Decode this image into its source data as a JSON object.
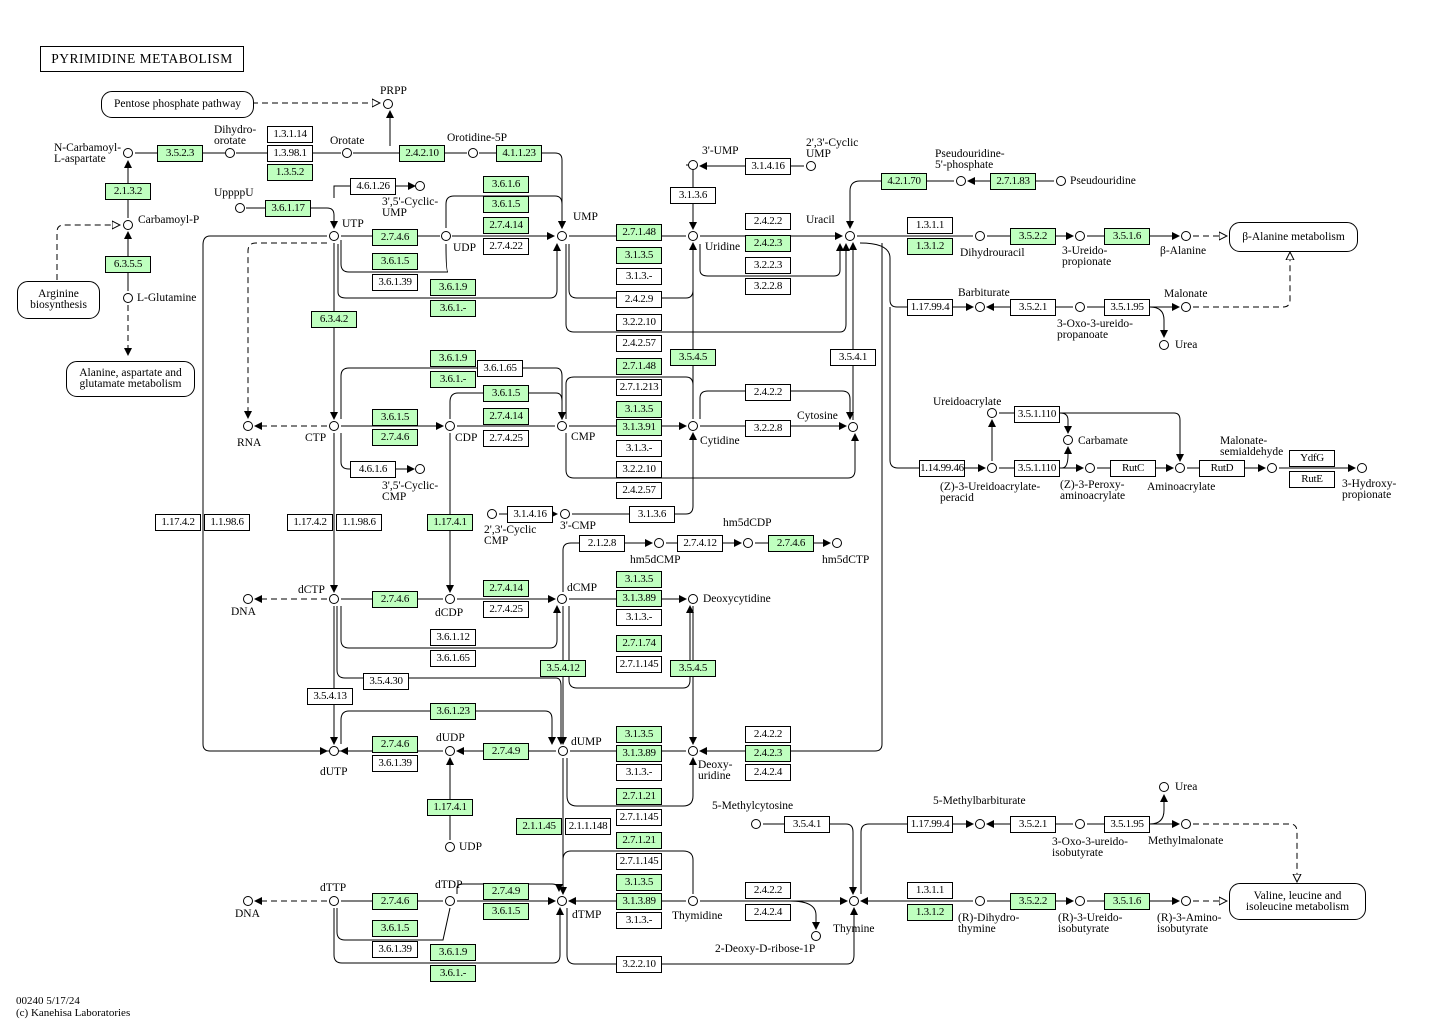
{
  "title": "PYRIMIDINE METABOLISM",
  "footer": {
    "line1": "00240 5/17/24",
    "line2": "(c) Kanehisa Laboratories"
  },
  "colors": {
    "highlighted_enzyme": "#bfffbf",
    "enzyme": "#ffffff"
  },
  "maps": [
    {
      "label": "Pentose phosphate pathway"
    },
    {
      "label": "Arginine\nbiosynthesis"
    },
    {
      "label": "Alanine, aspartate and\nglutamate metabolism"
    },
    {
      "label": "β-Alanine metabolism"
    },
    {
      "label": "Valine, leucine and\nisoleucine metabolism"
    }
  ],
  "enzymes": [
    {
      "label": "3.5.2.3",
      "hl": true
    },
    {
      "label": "1.3.1.14",
      "hl": false
    },
    {
      "label": "1.3.98.1",
      "hl": false
    },
    {
      "label": "1.3.5.2",
      "hl": true
    },
    {
      "label": "2.1.3.2",
      "hl": true
    },
    {
      "label": "6.3.5.5",
      "hl": true
    },
    {
      "label": "3.6.1.17",
      "hl": true
    },
    {
      "label": "2.4.2.10",
      "hl": true
    },
    {
      "label": "4.1.1.23",
      "hl": true
    },
    {
      "label": "4.6.1.26",
      "hl": false
    },
    {
      "label": "3.6.1.6",
      "hl": true
    },
    {
      "label": "3.6.1.5",
      "hl": true
    },
    {
      "label": "2.7.4.14",
      "hl": true
    },
    {
      "label": "2.7.4.22",
      "hl": false
    },
    {
      "label": "2.7.4.6",
      "hl": true
    },
    {
      "label": "3.6.1.5",
      "hl": true
    },
    {
      "label": "3.6.1.39",
      "hl": false
    },
    {
      "label": "3.6.1.9",
      "hl": true
    },
    {
      "label": "3.6.1.-",
      "hl": true
    },
    {
      "label": "6.3.4.2",
      "hl": true
    },
    {
      "label": "2.7.1.48",
      "hl": true
    },
    {
      "label": "3.1.3.5",
      "hl": true
    },
    {
      "label": "3.1.3.-",
      "hl": false
    },
    {
      "label": "2.4.2.9",
      "hl": false
    },
    {
      "label": "3.2.2.10",
      "hl": false
    },
    {
      "label": "2.4.2.57",
      "hl": false
    },
    {
      "label": "3.1.3.6",
      "hl": false
    },
    {
      "label": "3.1.4.16",
      "hl": false
    },
    {
      "label": "2.4.2.2",
      "hl": false
    },
    {
      "label": "2.4.2.3",
      "hl": true
    },
    {
      "label": "3.2.2.3",
      "hl": false
    },
    {
      "label": "3.2.2.8",
      "hl": false
    },
    {
      "label": "3.5.4.5",
      "hl": true
    },
    {
      "label": "3.5.4.1",
      "hl": false
    },
    {
      "label": "4.2.1.70",
      "hl": true
    },
    {
      "label": "2.7.1.83",
      "hl": true
    },
    {
      "label": "1.3.1.1",
      "hl": false
    },
    {
      "label": "1.3.1.2",
      "hl": true
    },
    {
      "label": "3.5.2.2",
      "hl": true
    },
    {
      "label": "3.5.1.6",
      "hl": true
    },
    {
      "label": "1.17.99.4",
      "hl": false
    },
    {
      "label": "3.5.2.1",
      "hl": false
    },
    {
      "label": "3.5.1.95",
      "hl": false
    },
    {
      "label": "3.6.1.9",
      "hl": true
    },
    {
      "label": "3.6.1.65",
      "hl": false
    },
    {
      "label": "3.6.1.-",
      "hl": true
    },
    {
      "label": "3.6.1.5",
      "hl": true
    },
    {
      "label": "2.7.4.14",
      "hl": true
    },
    {
      "label": "2.7.4.25",
      "hl": false
    },
    {
      "label": "3.6.1.5",
      "hl": true
    },
    {
      "label": "2.7.4.6",
      "hl": true
    },
    {
      "label": "4.6.1.6",
      "hl": false
    },
    {
      "label": "2.7.1.48",
      "hl": true
    },
    {
      "label": "2.7.1.213",
      "hl": false
    },
    {
      "label": "3.1.3.5",
      "hl": true
    },
    {
      "label": "3.1.3.91",
      "hl": true
    },
    {
      "label": "3.1.3.-",
      "hl": false
    },
    {
      "label": "3.2.2.10",
      "hl": false
    },
    {
      "label": "2.4.2.57",
      "hl": false
    },
    {
      "label": "2.4.2.2",
      "hl": false
    },
    {
      "label": "3.2.2.8",
      "hl": false
    },
    {
      "label": "3.1.4.16",
      "hl": false
    },
    {
      "label": "3.1.3.6",
      "hl": false
    },
    {
      "label": "1.17.4.2",
      "hl": false
    },
    {
      "label": "1.1.98.6",
      "hl": false
    },
    {
      "label": "1.17.4.2",
      "hl": false
    },
    {
      "label": "1.1.98.6",
      "hl": false
    },
    {
      "label": "1.17.4.1",
      "hl": true
    },
    {
      "label": "2.1.2.8",
      "hl": false
    },
    {
      "label": "2.7.4.12",
      "hl": false
    },
    {
      "label": "2.7.4.6",
      "hl": true
    },
    {
      "label": "2.7.4.6",
      "hl": true
    },
    {
      "label": "2.7.4.14",
      "hl": true
    },
    {
      "label": "2.7.4.25",
      "hl": false
    },
    {
      "label": "3.6.1.12",
      "hl": false
    },
    {
      "label": "3.6.1.65",
      "hl": false
    },
    {
      "label": "3.1.3.5",
      "hl": true
    },
    {
      "label": "3.1.3.89",
      "hl": true
    },
    {
      "label": "3.1.3.-",
      "hl": false
    },
    {
      "label": "2.7.1.74",
      "hl": true
    },
    {
      "label": "2.7.1.145",
      "hl": false
    },
    {
      "label": "3.5.4.12",
      "hl": true
    },
    {
      "label": "3.5.4.5",
      "hl": true
    },
    {
      "label": "3.5.4.30",
      "hl": false
    },
    {
      "label": "3.5.4.13",
      "hl": false
    },
    {
      "label": "3.6.1.23",
      "hl": true
    },
    {
      "label": "2.7.4.6",
      "hl": true
    },
    {
      "label": "3.6.1.39",
      "hl": false
    },
    {
      "label": "2.7.4.9",
      "hl": true
    },
    {
      "label": "3.1.3.5",
      "hl": true
    },
    {
      "label": "3.1.3.89",
      "hl": true
    },
    {
      "label": "3.1.3.-",
      "hl": false
    },
    {
      "label": "2.7.1.21",
      "hl": true
    },
    {
      "label": "2.7.1.145",
      "hl": false
    },
    {
      "label": "2.4.2.2",
      "hl": false
    },
    {
      "label": "2.4.2.3",
      "hl": true
    },
    {
      "label": "2.4.2.4",
      "hl": false
    },
    {
      "label": "1.17.4.1",
      "hl": true
    },
    {
      "label": "2.1.1.45",
      "hl": true
    },
    {
      "label": "2.1.1.148",
      "hl": false
    },
    {
      "label": "2.7.1.21",
      "hl": true
    },
    {
      "label": "2.7.1.145",
      "hl": false
    },
    {
      "label": "3.1.3.5",
      "hl": true
    },
    {
      "label": "3.1.3.89",
      "hl": true
    },
    {
      "label": "3.1.3.-",
      "hl": false
    },
    {
      "label": "3.2.2.10",
      "hl": false
    },
    {
      "label": "2.7.4.9",
      "hl": true
    },
    {
      "label": "3.6.1.5",
      "hl": true
    },
    {
      "label": "2.7.4.6",
      "hl": true
    },
    {
      "label": "3.6.1.5",
      "hl": true
    },
    {
      "label": "3.6.1.39",
      "hl": false
    },
    {
      "label": "3.6.1.9",
      "hl": true
    },
    {
      "label": "3.6.1.-",
      "hl": true
    },
    {
      "label": "2.4.2.2",
      "hl": false
    },
    {
      "label": "2.4.2.4",
      "hl": false
    },
    {
      "label": "3.5.4.1",
      "hl": false
    },
    {
      "label": "1.17.99.4",
      "hl": false
    },
    {
      "label": "3.5.2.1",
      "hl": false
    },
    {
      "label": "3.5.1.95",
      "hl": false
    },
    {
      "label": "1.3.1.1",
      "hl": false
    },
    {
      "label": "1.3.1.2",
      "hl": true
    },
    {
      "label": "3.5.2.2",
      "hl": true
    },
    {
      "label": "3.5.1.6",
      "hl": true
    },
    {
      "label": "3.5.1.110",
      "hl": false
    },
    {
      "label": "1.14.99.46",
      "hl": false
    },
    {
      "label": "3.5.1.110",
      "hl": false
    },
    {
      "label": "RutC",
      "hl": false
    },
    {
      "label": "RutD",
      "hl": false
    },
    {
      "label": "YdfG",
      "hl": false
    },
    {
      "label": "RutE",
      "hl": false
    }
  ],
  "compounds": [
    {
      "label": "PRPP"
    },
    {
      "label": "Orotate"
    },
    {
      "label": "Dihydro-\norotate"
    },
    {
      "label": "N-Carbamoyl-\nL-aspartate"
    },
    {
      "label": "Carbamoyl-P"
    },
    {
      "label": "L-Glutamine"
    },
    {
      "label": "UppppU"
    },
    {
      "label": "Orotidine-5P"
    },
    {
      "label": "UMP"
    },
    {
      "label": "UTP"
    },
    {
      "label": "UDP"
    },
    {
      "label": "3',5'-Cyclic-\nUMP"
    },
    {
      "label": "3'-UMP"
    },
    {
      "label": "2',3'-Cyclic\nUMP"
    },
    {
      "label": "Uridine"
    },
    {
      "label": "Uracil"
    },
    {
      "label": "Pseudouridine-\n5'-phosphate"
    },
    {
      "label": "Pseudouridine"
    },
    {
      "label": "Dihydrouracil"
    },
    {
      "label": "3-Ureido-\npropionate"
    },
    {
      "label": "β-Alanine"
    },
    {
      "label": "Barbiturate"
    },
    {
      "label": "3-Oxo-3-ureido-\npropanoate"
    },
    {
      "label": "Malonate"
    },
    {
      "label": "Urea"
    },
    {
      "label": "RNA"
    },
    {
      "label": "CTP"
    },
    {
      "label": "CDP"
    },
    {
      "label": "CMP"
    },
    {
      "label": "Cytidine"
    },
    {
      "label": "Cytosine"
    },
    {
      "label": "3',5'-Cyclic-\nCMP"
    },
    {
      "label": "2',3'-Cyclic\nCMP"
    },
    {
      "label": "3'-CMP"
    },
    {
      "label": "hm5dCMP"
    },
    {
      "label": "hm5dCDP"
    },
    {
      "label": "hm5dCTP"
    },
    {
      "label": "Ureidoacrylate"
    },
    {
      "label": "Carbamate"
    },
    {
      "label": "(Z)-3-Ureidoacrylate-\nperacid"
    },
    {
      "label": "(Z)-3-Peroxy-\naminoacrylate"
    },
    {
      "label": "Aminoacrylate"
    },
    {
      "label": "Malonate-\nsemialdehyde"
    },
    {
      "label": "3-Hydroxy-\npropionate"
    },
    {
      "label": "DNA"
    },
    {
      "label": "dCTP"
    },
    {
      "label": "dCDP"
    },
    {
      "label": "dCMP"
    },
    {
      "label": "Deoxycytidine"
    },
    {
      "label": "dUTP"
    },
    {
      "label": "dUDP"
    },
    {
      "label": "dUMP"
    },
    {
      "label": "Deoxy-\nuridine"
    },
    {
      "label": "UDP"
    },
    {
      "label": "5-Methylcytosine"
    },
    {
      "label": "5-Methylbarbiturate"
    },
    {
      "label": "3-Oxo-3-ureido-\nisobutyrate"
    },
    {
      "label": "Methylmalonate"
    },
    {
      "label": "Urea"
    },
    {
      "label": "DNA"
    },
    {
      "label": "dTTP"
    },
    {
      "label": "dTDP"
    },
    {
      "label": "dTMP"
    },
    {
      "label": "Thymidine"
    },
    {
      "label": "2-Deoxy-D-ribose-1P"
    },
    {
      "label": "Thymine"
    },
    {
      "label": "(R)-Dihydro-\nthymine"
    },
    {
      "label": "(R)-3-Ureido-\nisobutyrate"
    },
    {
      "label": "(R)-3-Amino-\nisobutyrate"
    }
  ]
}
